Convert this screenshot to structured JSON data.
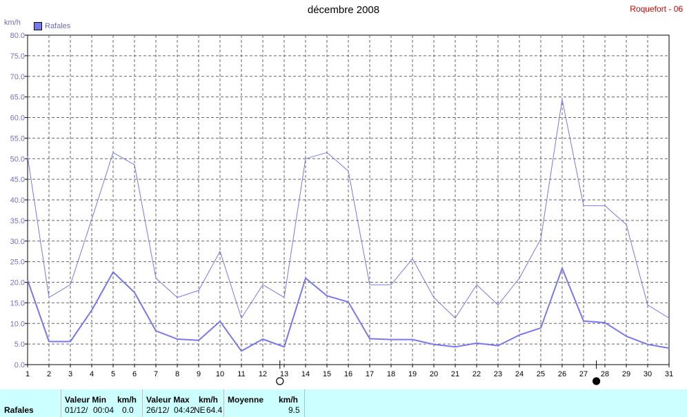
{
  "header": {
    "title": "décembre 2008",
    "station": "Roquefort - 06",
    "unit": "km/h",
    "legend": "Rafales"
  },
  "colors": {
    "series": "#7777ee",
    "grid": "#666666",
    "axis_text": "#7070c8"
  },
  "chart_data": {
    "type": "line",
    "ylim": [
      0,
      80
    ],
    "yticks": [
      "0.0",
      "5.0",
      "10.0",
      "15.0",
      "20.0",
      "25.0",
      "30.0",
      "35.0",
      "40.0",
      "45.0",
      "50.0",
      "55.0",
      "60.0",
      "65.0",
      "70.0",
      "75.0",
      "80.0"
    ],
    "x": [
      1,
      2,
      3,
      4,
      5,
      6,
      7,
      8,
      9,
      10,
      11,
      12,
      13,
      14,
      15,
      16,
      17,
      18,
      19,
      20,
      21,
      22,
      23,
      24,
      25,
      26,
      27,
      28,
      29,
      30,
      31
    ],
    "series": [
      {
        "role": "max",
        "values": [
          50.5,
          16.3,
          19.4,
          35.3,
          51.5,
          48.5,
          21.0,
          16.3,
          18.0,
          27.5,
          11.3,
          19.4,
          16.3,
          50.0,
          51.5,
          47.0,
          19.4,
          19.4,
          25.7,
          16.3,
          11.3,
          19.4,
          14.5,
          21.0,
          30.5,
          64.4,
          38.6,
          38.6,
          34.0,
          14.5,
          11.3
        ]
      },
      {
        "role": "mean",
        "values": [
          20.5,
          5.6,
          5.6,
          13.2,
          22.5,
          17.5,
          8.2,
          6.2,
          5.9,
          10.5,
          3.3,
          6.2,
          4.3,
          21.0,
          16.7,
          15.2,
          6.3,
          6.1,
          6.1,
          4.9,
          4.3,
          5.2,
          4.6,
          7.2,
          8.9,
          23.4,
          10.6,
          10.2,
          6.9,
          4.9,
          4.0
        ]
      }
    ],
    "moon_phases": [
      {
        "day": 12.8,
        "phase": "full"
      },
      {
        "day": 27.6,
        "phase": "new"
      }
    ]
  },
  "summary": {
    "row_label": "Rafales",
    "min_header": "Valeur Min",
    "min_unit": "km/h",
    "min_date": "01/12/",
    "min_time": "00:04",
    "min_value": "0.0",
    "max_header": "Valeur Max",
    "max_unit": "km/h",
    "max_date": "26/12/",
    "max_time": "04:42",
    "max_dir": "NE",
    "max_value": "64.4",
    "mean_header": "Moyenne",
    "mean_unit": "km/h",
    "mean_value": "9.5"
  }
}
